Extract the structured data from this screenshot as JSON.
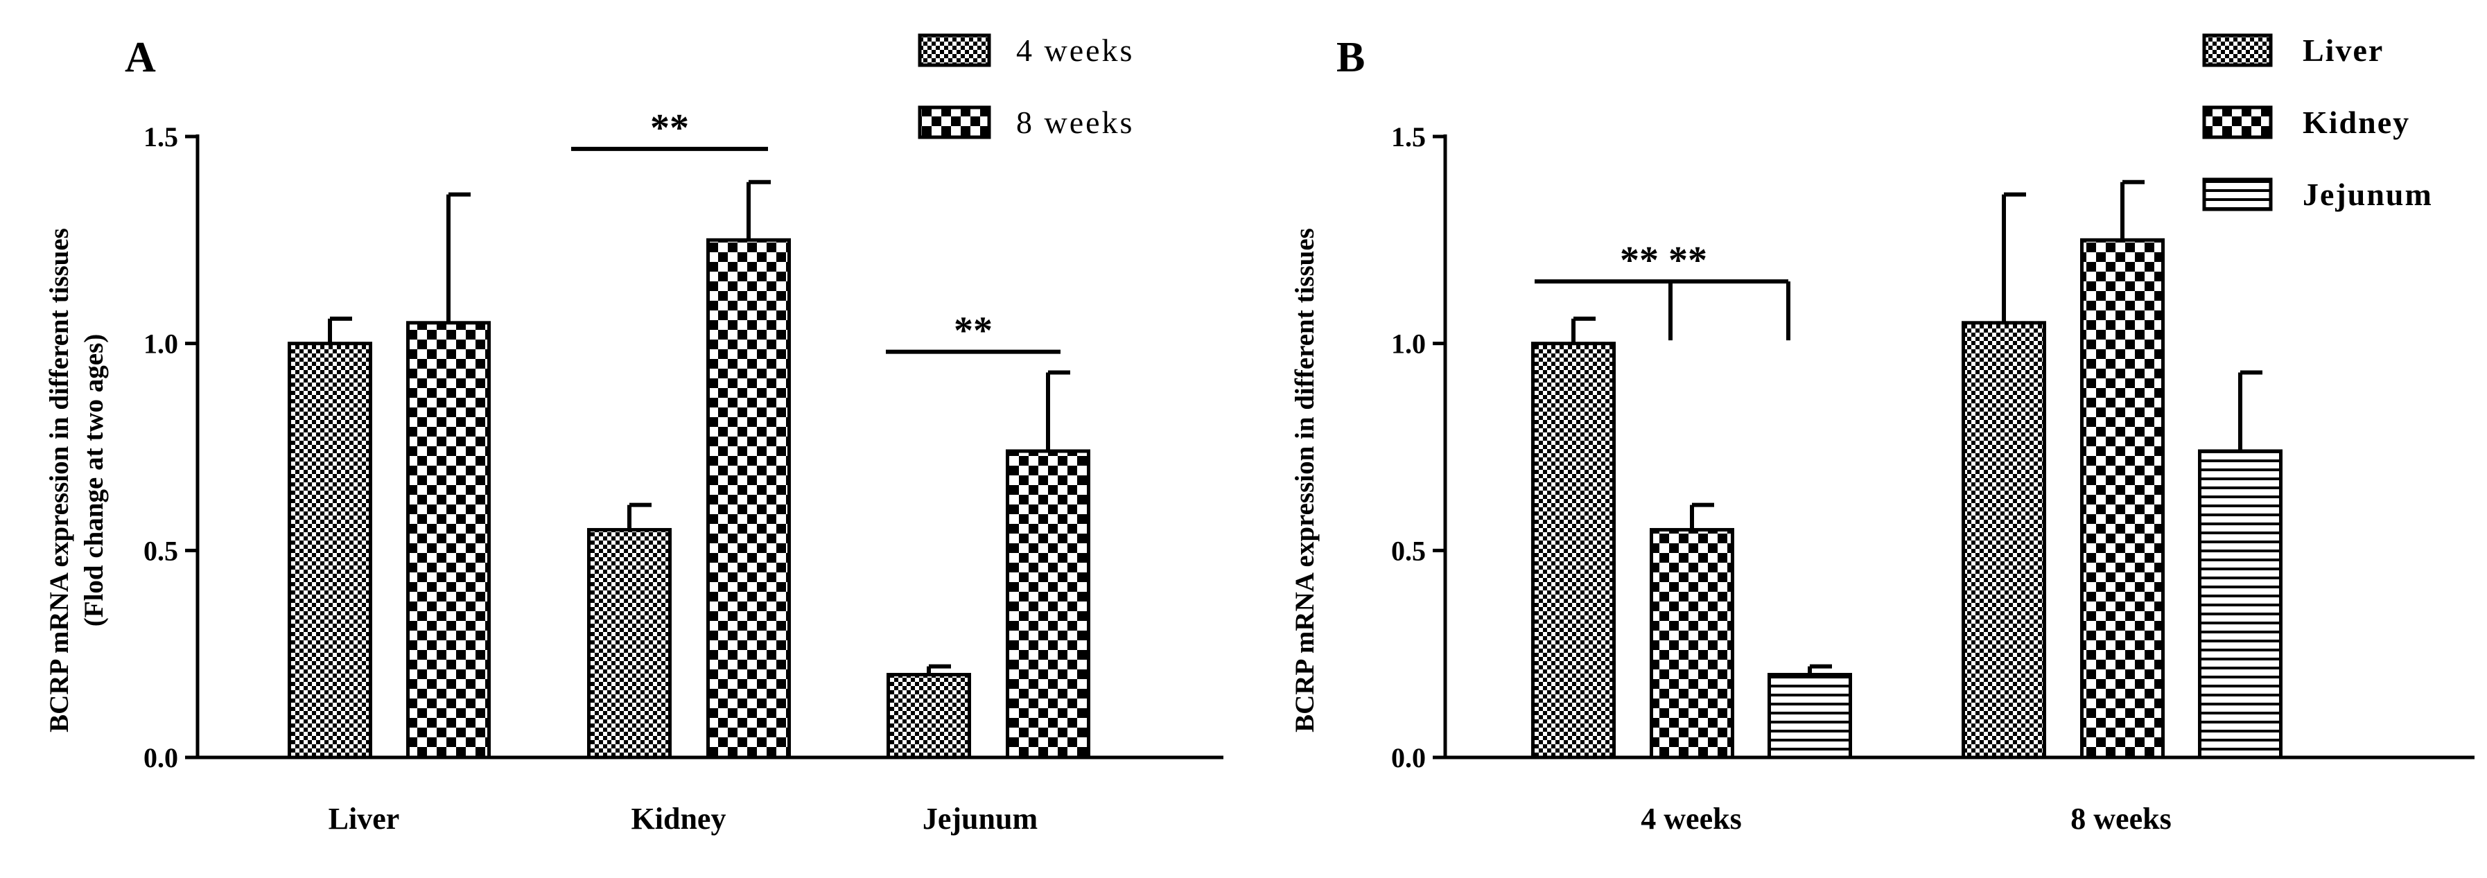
{
  "chart_data": [
    {
      "type": "bar",
      "panel_label": "A",
      "ylabel_line1": "BCRP mRNA expression in different tissues",
      "ylabel_line2": "(Flod change at two ages)",
      "xlabel": "",
      "ylim": [
        0,
        1.5
      ],
      "yticks": [
        "0.0",
        "0.5",
        "1.0",
        "1.5"
      ],
      "grid": false,
      "legend_position": "top-right",
      "categories": [
        "Liver",
        "Kidney",
        "Jejunum"
      ],
      "series": [
        {
          "name": "4 weeks",
          "pattern": "fine-checker",
          "values": [
            1.0,
            0.55,
            0.2
          ],
          "errors": [
            0.06,
            0.06,
            0.02
          ]
        },
        {
          "name": "8 weeks",
          "pattern": "coarse-checker",
          "values": [
            1.05,
            1.25,
            0.74
          ],
          "errors": [
            0.31,
            0.14,
            0.19
          ]
        }
      ],
      "annotations": [
        {
          "label": "**",
          "category": "Kidney",
          "between": [
            "4 weeks",
            "8 weeks"
          ],
          "y": 1.47
        },
        {
          "label": "**",
          "category": "Jejunum",
          "between": [
            "4 weeks",
            "8 weeks"
          ],
          "y": 0.98
        }
      ]
    },
    {
      "type": "bar",
      "panel_label": "B",
      "ylabel_line1": "BCRP mRNA expression in different tissues",
      "xlabel": "",
      "ylim": [
        0,
        1.5
      ],
      "yticks": [
        "0.0",
        "0.5",
        "1.0",
        "1.5"
      ],
      "grid": false,
      "legend_position": "top-right",
      "categories": [
        "4 weeks",
        "8 weeks"
      ],
      "series": [
        {
          "name": "Liver",
          "pattern": "fine-checker",
          "values": [
            1.0,
            1.05
          ],
          "errors": [
            0.06,
            0.31
          ]
        },
        {
          "name": "Kidney",
          "pattern": "coarse-checker",
          "values": [
            0.55,
            1.25
          ],
          "errors": [
            0.06,
            0.14
          ]
        },
        {
          "name": "Jejunum",
          "pattern": "horizontal-lines",
          "values": [
            0.2,
            0.74
          ],
          "errors": [
            0.02,
            0.19
          ]
        }
      ],
      "annotations": [
        {
          "label": "** **",
          "category": "4 weeks",
          "from": "Liver",
          "to": [
            "Kidney",
            "Jejunum"
          ],
          "y": 1.15
        }
      ]
    }
  ]
}
